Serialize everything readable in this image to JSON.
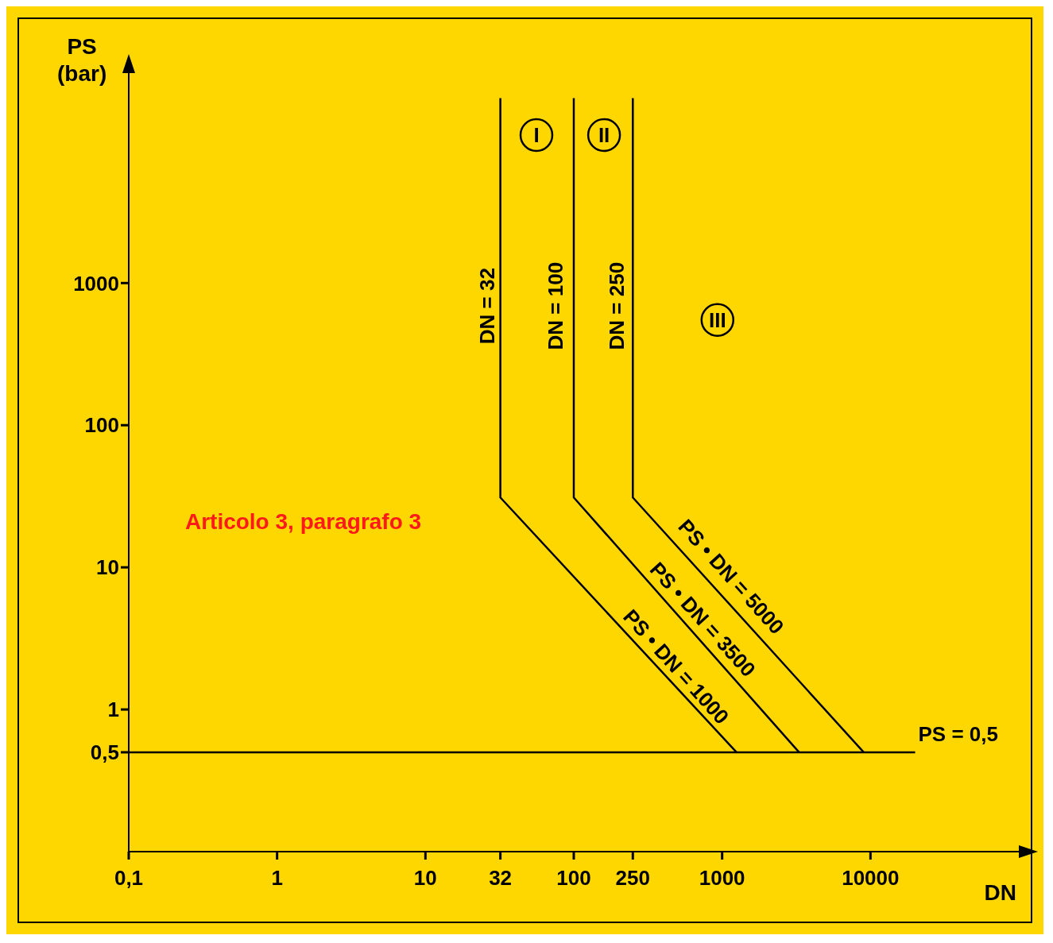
{
  "chart_data": {
    "type": "line",
    "xlabel": "DN",
    "ylabel": "PS (bar)",
    "log": "xy",
    "grid": false,
    "legend": false,
    "marker": "none",
    "line_style": "solid",
    "xlim": [
      0.1,
      100000
    ],
    "xticks": [
      {
        "value": 0.1,
        "label": "0,1"
      },
      1,
      10,
      32,
      100,
      250,
      1000,
      10000
    ],
    "ylim": [
      0.1,
      30000
    ],
    "yticks": [
      {
        "value": 0.5,
        "label": "0,5"
      },
      1,
      10,
      100,
      1000
    ],
    "series": [
      {
        "color": "#000000",
        "x": [
          0.1,
          20000
        ],
        "values": [
          0.5,
          0.5
        ]
      },
      {
        "color": "#000000",
        "x": [
          32,
          32,
          1250
        ],
        "values": [
          20000,
          31,
          0.5
        ]
      },
      {
        "color": "#000000",
        "x": [
          100,
          100,
          3300
        ],
        "values": [
          20000,
          31,
          0.5
        ]
      },
      {
        "color": "#000000",
        "x": [
          250,
          250,
          9000
        ],
        "values": [
          20000,
          31,
          0.5
        ]
      }
    ],
    "annotations": [
      "DN = 32",
      "DN = 100",
      "DN = 250",
      "I",
      "II",
      "III",
      "PS • DN = 1000",
      "PS • DN = 3500",
      "PS • DN = 5000",
      "PS = 0,5",
      "Articolo 3, paragrafo 3"
    ]
  }
}
